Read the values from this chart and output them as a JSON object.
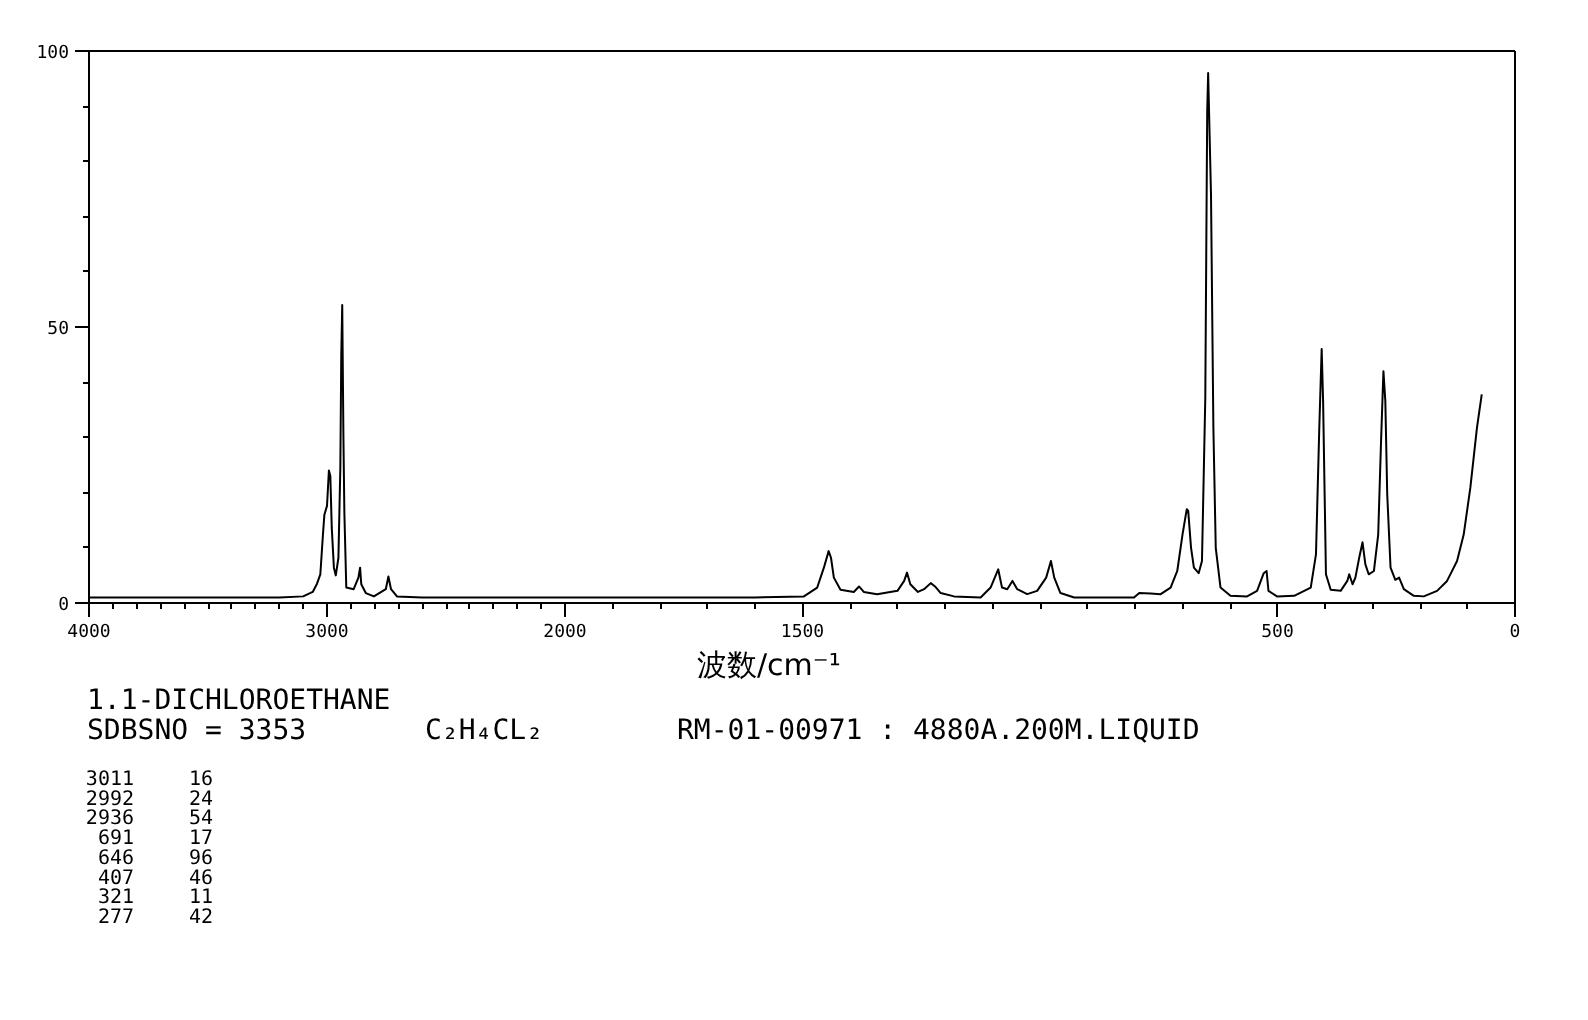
{
  "chart_data": [
    {
      "type": "line",
      "color": "#000000",
      "x": [
        4000,
        3900,
        3800,
        3700,
        3600,
        3500,
        3400,
        3300,
        3200,
        3100,
        3060,
        3042,
        3028,
        3017,
        3011,
        3000,
        2992,
        2986,
        2980,
        2971,
        2963,
        2952,
        2944,
        2940,
        2936,
        2931,
        2927,
        2919,
        2888,
        2868,
        2861,
        2856,
        2837,
        2803,
        2753,
        2742,
        2731,
        2706,
        2600,
        2400,
        2200,
        2000
      ],
      "values": [
        1,
        1,
        1,
        1,
        1,
        1,
        1,
        1,
        1,
        1.2,
        2,
        3.5,
        5.2,
        12.4,
        16,
        17.6,
        24,
        23,
        13.6,
        6.4,
        5,
        8.2,
        24.5,
        45,
        54,
        30,
        16.3,
        2.8,
        2.5,
        4.6,
        6.4,
        3.4,
        1.8,
        1.2,
        2.5,
        4.8,
        2.5,
        1.2,
        1,
        1,
        1,
        1
      ],
      "xlim": [
        4000,
        2000
      ],
      "xticks": [
        4000,
        {
          "value": 3900,
          "label": null
        },
        {
          "value": 3800,
          "label": null
        },
        {
          "value": 3700,
          "label": null
        },
        {
          "value": 3600,
          "label": null
        },
        {
          "value": 3500,
          "label": null
        },
        {
          "value": 3400,
          "label": null
        },
        {
          "value": 3300,
          "label": null
        },
        {
          "value": 3200,
          "label": null
        },
        {
          "value": 3100,
          "label": null
        },
        3000,
        {
          "value": 2900,
          "label": null
        },
        {
          "value": 2800,
          "label": null
        },
        {
          "value": 2700,
          "label": null
        },
        {
          "value": 2600,
          "label": null
        },
        {
          "value": 2500,
          "label": null
        },
        {
          "value": 2400,
          "label": null
        },
        {
          "value": 2300,
          "label": null
        },
        {
          "value": 2200,
          "label": null
        },
        {
          "value": 2100,
          "label": null
        },
        2000
      ],
      "ylim": [
        0,
        100
      ],
      "yticks": [
        0,
        {
          "value": 10,
          "label": null
        },
        {
          "value": 20,
          "label": null
        },
        {
          "value": 30,
          "label": null
        },
        {
          "value": 40,
          "label": null
        },
        50,
        {
          "value": 60,
          "label": null
        },
        {
          "value": 70,
          "label": null
        },
        {
          "value": 80,
          "label": null
        },
        {
          "value": 90,
          "label": null
        },
        100
      ]
    },
    {
      "type": "line",
      "color": "#000000",
      "xlabel": "波数/cm⁻¹",
      "x": [
        2000,
        1800,
        1600,
        1497,
        1469,
        1455,
        1445,
        1440,
        1434,
        1420,
        1392,
        1381,
        1371,
        1343,
        1300,
        1286,
        1280,
        1273,
        1257,
        1244,
        1230,
        1221,
        1209,
        1181,
        1125,
        1104,
        1088,
        1080,
        1069,
        1058,
        1048,
        1027,
        1006,
        987,
        977,
        970,
        957,
        928,
        802,
        791,
        767,
        746,
        725,
        711,
        700,
        691,
        688,
        682,
        676,
        666,
        659,
        652,
        648,
        646,
        640,
        635,
        630,
        620,
        599,
        564,
        543,
        529,
        523,
        519,
        501,
        465,
        430,
        419,
        412,
        407,
        404,
        398,
        388,
        367,
        353,
        349,
        342,
        336,
        328,
        321,
        315,
        308,
        297,
        288,
        282,
        277,
        273,
        269,
        262,
        252,
        244,
        234,
        213,
        192,
        164,
        143,
        122,
        108,
        94,
        80,
        70
      ],
      "values": [
        1,
        1,
        1,
        1.2,
        2.8,
        6.4,
        9.4,
        8.2,
        4.6,
        2.4,
        2,
        3,
        2,
        1.6,
        2.2,
        4,
        5.5,
        3.4,
        2,
        2.5,
        3.6,
        3,
        1.8,
        1.2,
        1,
        2.8,
        6.1,
        2.8,
        2.5,
        4,
        2.5,
        1.6,
        2.2,
        4.6,
        7.6,
        4.6,
        1.8,
        1,
        1,
        1.8,
        1.7,
        1.6,
        2.8,
        5.8,
        12.4,
        17,
        16.7,
        10,
        6.4,
        5.4,
        7.6,
        37.2,
        89,
        96,
        74,
        31.8,
        10,
        2.8,
        1.3,
        1.2,
        2.2,
        5.4,
        5.8,
        2.2,
        1.2,
        1.3,
        2.8,
        8.8,
        31.8,
        46,
        36.6,
        5.2,
        2.4,
        2.2,
        4,
        5.2,
        3.4,
        4.6,
        8.2,
        11,
        7,
        5.2,
        5.8,
        12.4,
        29.3,
        42,
        36.6,
        19.7,
        6.4,
        4.2,
        4.6,
        2.5,
        1.3,
        1.2,
        2.2,
        4,
        7.6,
        12.4,
        20.9,
        31.8,
        37.8
      ],
      "xlim": [
        2000,
        0
      ],
      "xticks": [
        {
          "value": 1900,
          "label": null
        },
        {
          "value": 1800,
          "label": null
        },
        {
          "value": 1700,
          "label": null
        },
        {
          "value": 1600,
          "label": null
        },
        1500,
        {
          "value": 1400,
          "label": null
        },
        {
          "value": 1300,
          "label": null
        },
        {
          "value": 1200,
          "label": null
        },
        {
          "value": 1100,
          "label": null
        },
        {
          "value": 1000,
          "label": null
        },
        {
          "value": 900,
          "label": null
        },
        {
          "value": 800,
          "label": null
        },
        {
          "value": 700,
          "label": null
        },
        {
          "value": 600,
          "label": null
        },
        500,
        {
          "value": 400,
          "label": null
        },
        {
          "value": 300,
          "label": null
        },
        {
          "value": 200,
          "label": null
        },
        {
          "value": 100,
          "label": null
        },
        0
      ],
      "ylim": [
        0,
        100
      ],
      "tick_labels": "x"
    },
    {
      "type": "other",
      "annotations": [
        "1.1-DICHLOROETHANE",
        "SDBSNO = 3353",
        "C₂H₄CL₂",
        "RM-01-00971 : 4880A.200M.LIQUID",
        "3011",
        "16",
        "2992",
        "24",
        "2936",
        "54",
        "691",
        "17",
        "646",
        "96",
        "407",
        "46",
        "321",
        "11",
        "277",
        "42"
      ]
    }
  ]
}
